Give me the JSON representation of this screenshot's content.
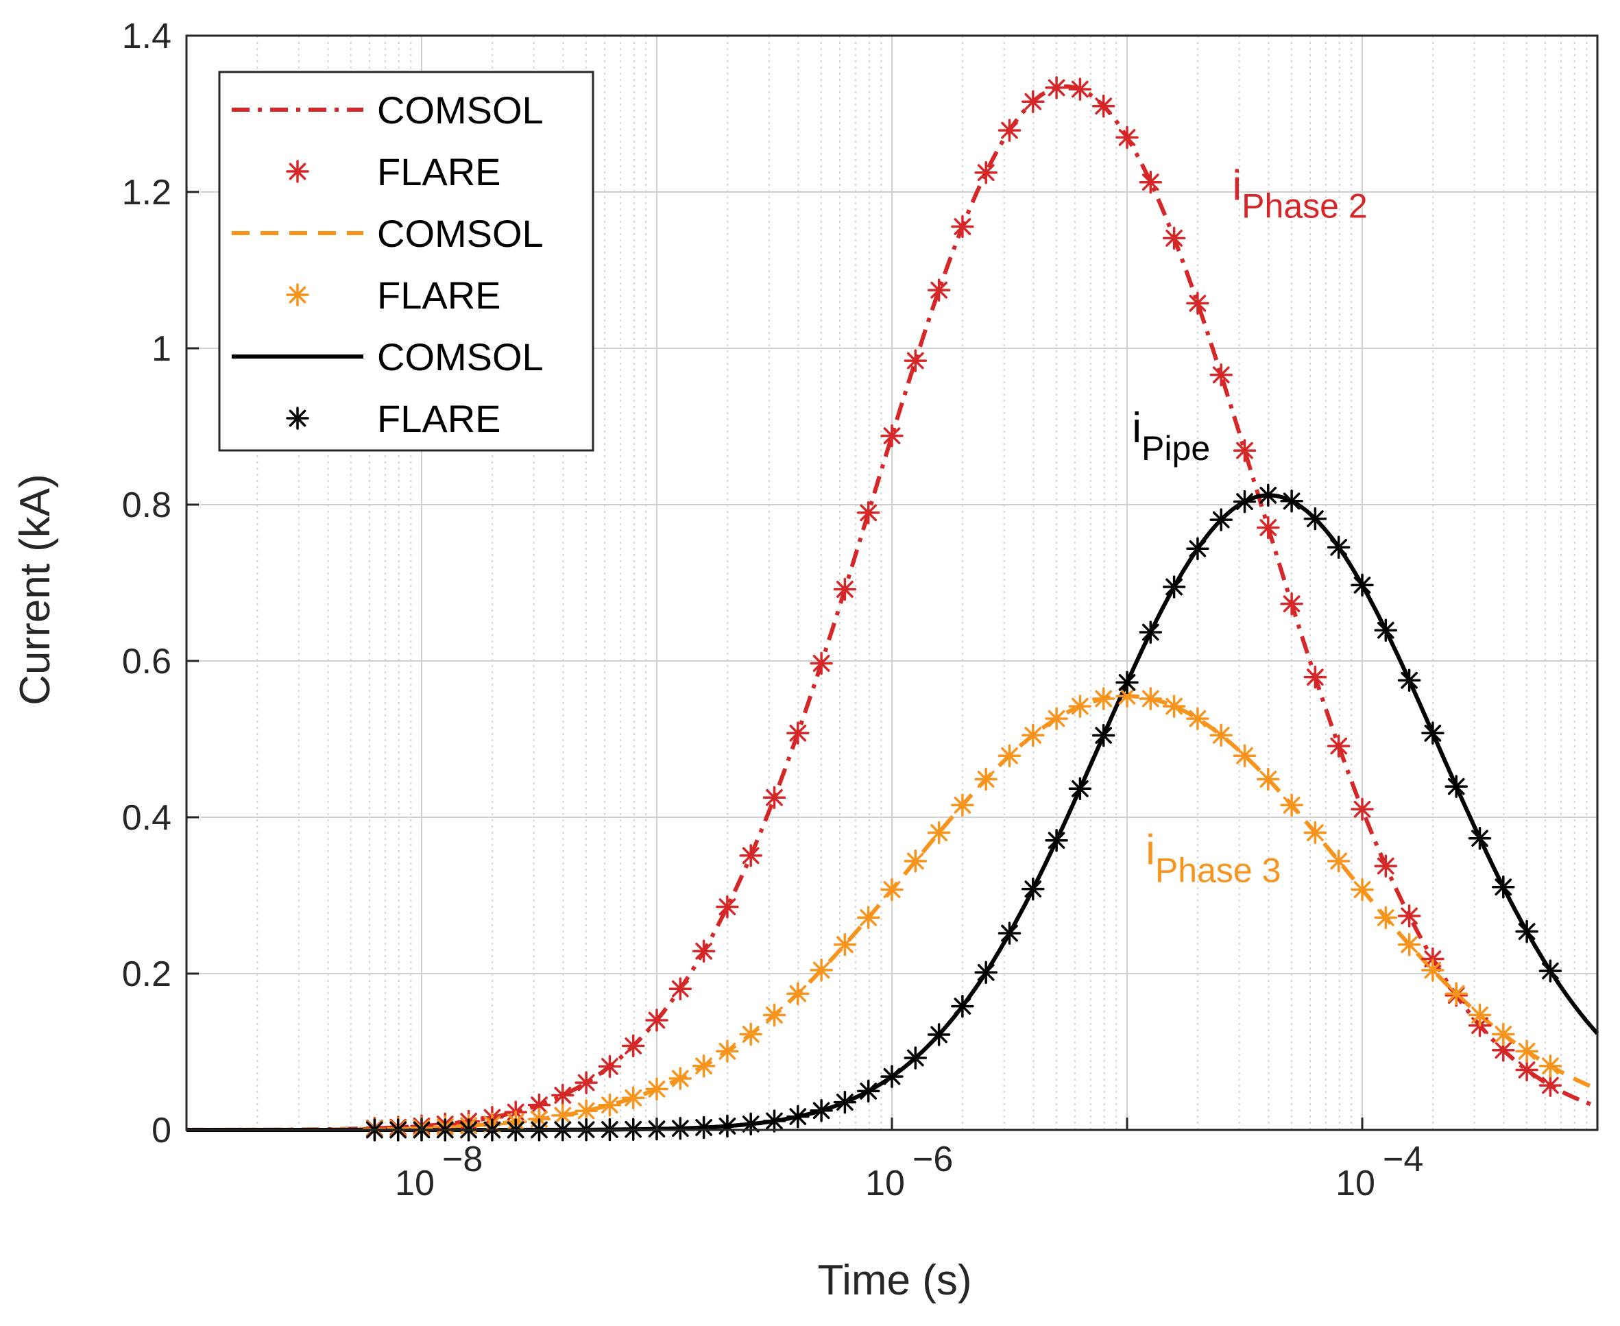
{
  "chart_data": {
    "type": "line",
    "xscale": "log",
    "xlim": [
      1e-09,
      0.001
    ],
    "ylim": [
      0,
      1.4
    ],
    "xlabel": "Time (s)",
    "ylabel": "Current (kA)",
    "grid": true,
    "x_ticks": [
      {
        "value": 1e-08,
        "base": "10",
        "exp": "−8"
      },
      {
        "value": 1e-06,
        "base": "10",
        "exp": "−6"
      },
      {
        "value": 0.0001,
        "base": "10",
        "exp": "−4"
      }
    ],
    "y_ticks": [
      {
        "value": 0,
        "label": "0"
      },
      {
        "value": 0.2,
        "label": "0.2"
      },
      {
        "value": 0.4,
        "label": "0.4"
      },
      {
        "value": 0.6,
        "label": "0.6"
      },
      {
        "value": 0.8,
        "label": "0.8"
      },
      {
        "value": 1.0,
        "label": "1"
      },
      {
        "value": 1.2,
        "label": "1.2"
      },
      {
        "value": 1.4,
        "label": "1.4"
      }
    ],
    "legend_position": "top-left",
    "series": [
      {
        "key": "phase2",
        "color": "#d62728",
        "peak": 1.335,
        "peak_time": 5.5e-06,
        "width_decades": 0.82,
        "curve_style": "dashdot"
      },
      {
        "key": "phase3",
        "color": "#f7941d",
        "peak": 0.555,
        "peak_time": 1e-05,
        "width_decades": 0.92,
        "curve_style": "dash"
      },
      {
        "key": "pipe",
        "color": "#000000",
        "peak": 0.812,
        "peak_time": 4e-05,
        "width_decades": 0.72,
        "curve_style": "solid"
      }
    ],
    "legend": [
      {
        "label": "COMSOL",
        "color": "#d62728",
        "kind": "line",
        "style": "dashdot"
      },
      {
        "label": "FLARE",
        "color": "#d62728",
        "kind": "marker"
      },
      {
        "label": "COMSOL",
        "color": "#f7941d",
        "kind": "line",
        "style": "dash"
      },
      {
        "label": "FLARE",
        "color": "#f7941d",
        "kind": "marker"
      },
      {
        "label": "COMSOL",
        "color": "#000000",
        "kind": "line",
        "style": "solid"
      },
      {
        "label": "FLARE",
        "color": "#000000",
        "kind": "marker"
      }
    ],
    "annotations": [
      {
        "main": "i",
        "sub": "Phase 2",
        "color": "#d62728",
        "x": 2.8e-05,
        "y": 1.19
      },
      {
        "main": "i",
        "sub": "Pipe",
        "color": "#000000",
        "x": 1.05e-05,
        "y": 0.88
      },
      {
        "main": "i",
        "sub": "Phase 3",
        "color": "#f7941d",
        "x": 1.2e-05,
        "y": 0.34
      }
    ]
  }
}
